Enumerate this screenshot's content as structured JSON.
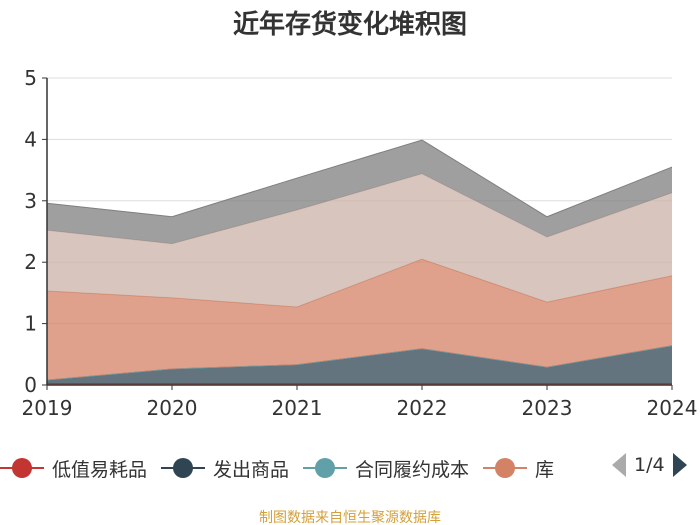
{
  "chart_data": {
    "type": "area",
    "stacked": true,
    "title": "近年存货变化堆积图",
    "categories": [
      "2019",
      "2020",
      "2021",
      "2022",
      "2023",
      "2024"
    ],
    "ylim": [
      0,
      5
    ],
    "yticks": [
      0,
      1,
      2,
      3,
      4,
      5
    ],
    "grid": true,
    "legend_position": "bottom",
    "series": [
      {
        "name": "低值易耗品",
        "color": "#c23531",
        "values": [
          0.02,
          0.02,
          0.02,
          0.02,
          0.02,
          0.02
        ]
      },
      {
        "name": "发出商品",
        "color": "#2f4554",
        "values": [
          0.06,
          0.24,
          0.31,
          0.57,
          0.27,
          0.62
        ]
      },
      {
        "name": "合同履约成本",
        "color": "#61a0a8",
        "values": [
          0,
          0,
          0,
          0,
          0,
          0
        ]
      },
      {
        "name": "库",
        "color": "#d48265",
        "values": [
          1.45,
          1.16,
          0.94,
          1.46,
          1.06,
          1.14
        ]
      },
      {
        "color": "#c9b1a8",
        "values": [
          0.99,
          0.88,
          1.58,
          1.39,
          1.06,
          1.35
        ]
      },
      {
        "color": "#7f7f80",
        "values": [
          0.44,
          0.44,
          0.52,
          0.55,
          0.33,
          0.42
        ]
      }
    ]
  },
  "legend": {
    "page": "1/4"
  },
  "source": "制图数据来自恒生聚源数据库"
}
